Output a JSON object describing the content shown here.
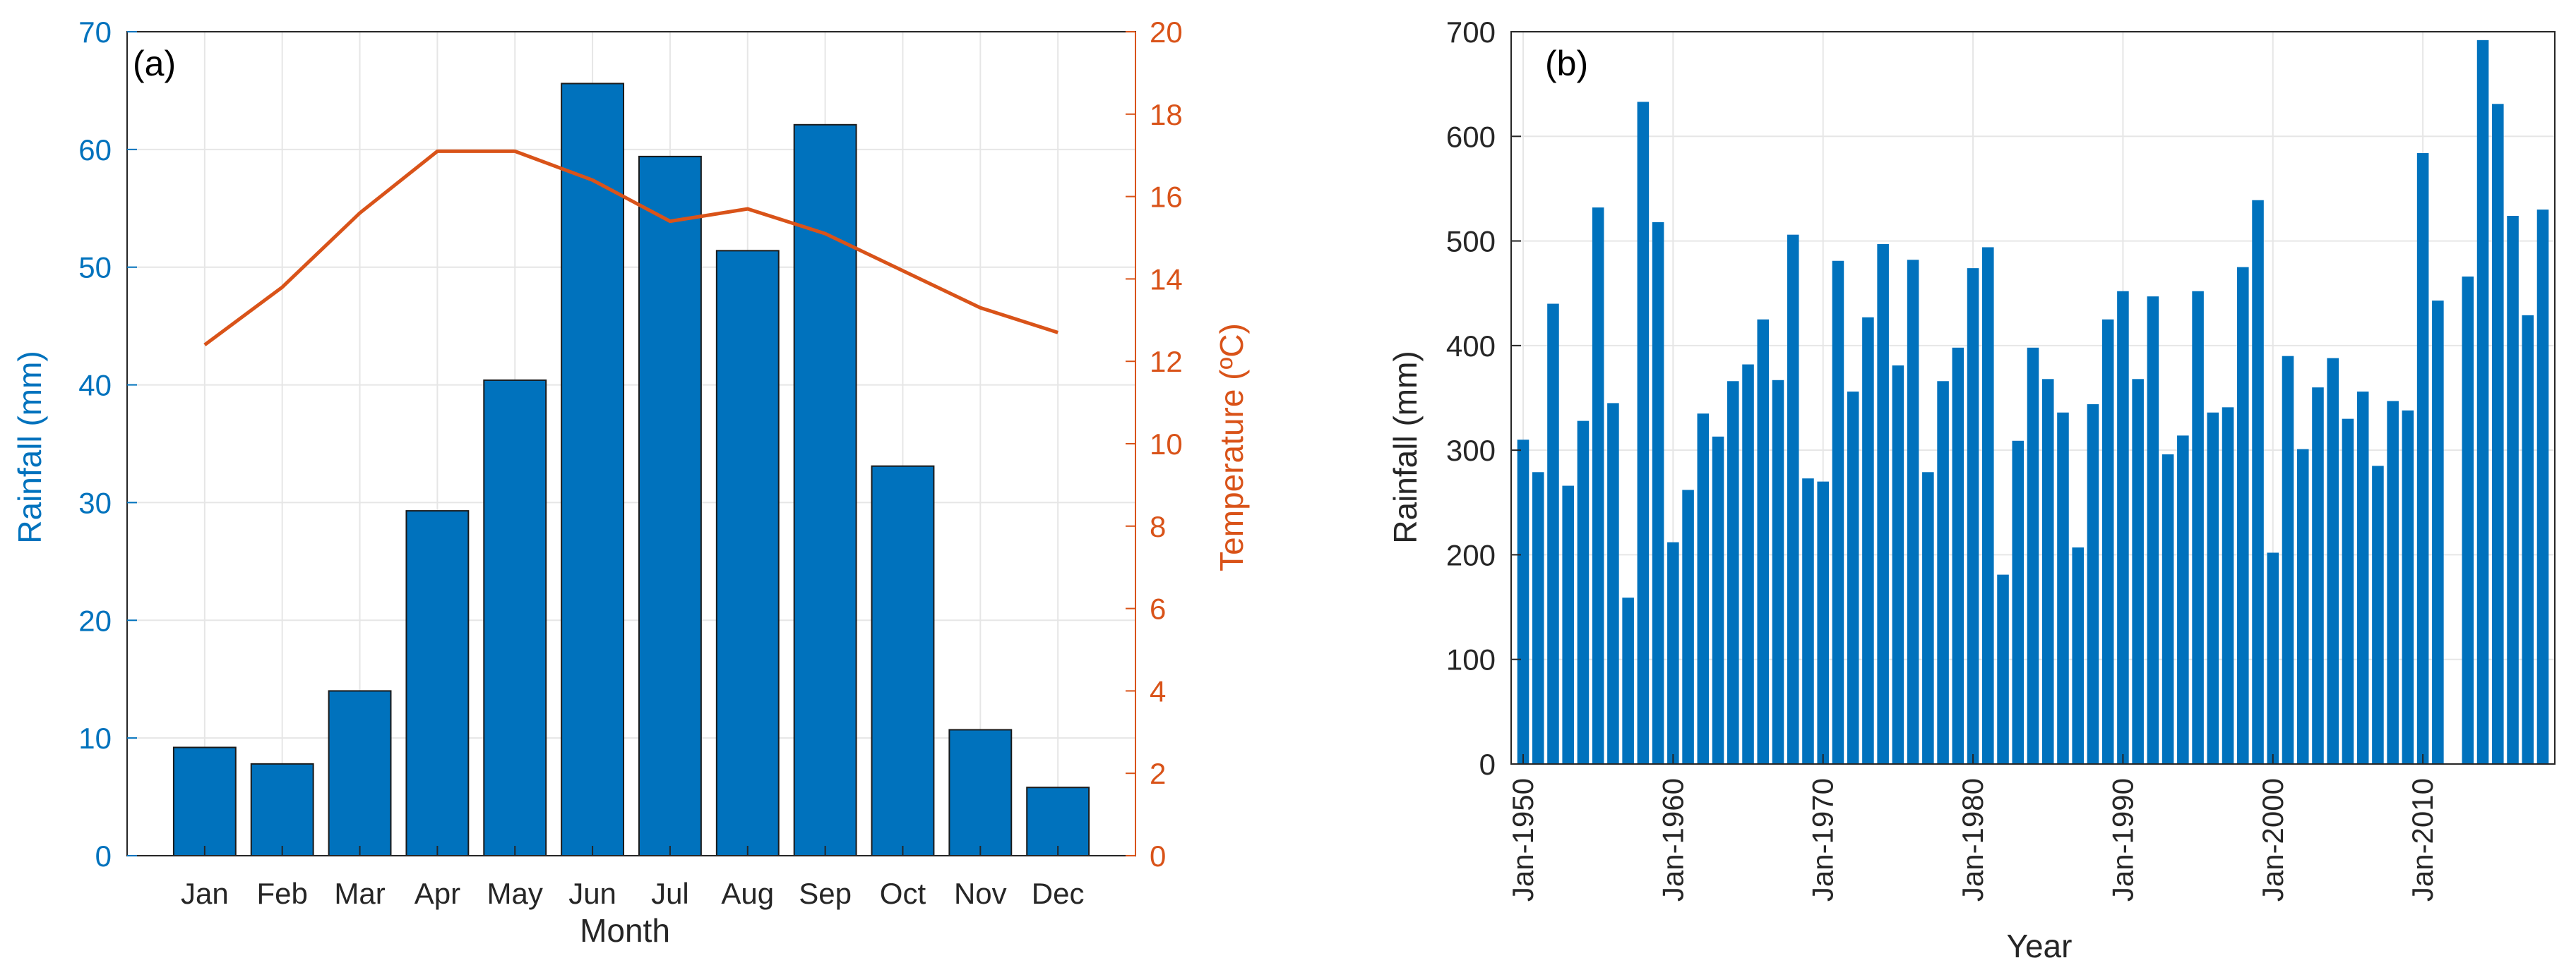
{
  "chart_data": [
    {
      "panel": "(a)",
      "type": "bar",
      "categories": [
        "Jan",
        "Feb",
        "Mar",
        "Apr",
        "May",
        "Jun",
        "Jul",
        "Aug",
        "Sep",
        "Oct",
        "Nov",
        "Dec"
      ],
      "series": [
        {
          "name": "Rainfall",
          "type": "bar",
          "axis": "left",
          "color": "#0072BD",
          "values": [
            9.2,
            7.8,
            14.0,
            29.3,
            40.4,
            65.6,
            59.4,
            51.4,
            62.1,
            33.1,
            10.7,
            5.8
          ]
        },
        {
          "name": "Temperature",
          "type": "line",
          "axis": "right",
          "color": "#D95319",
          "values": [
            12.4,
            13.8,
            15.6,
            17.1,
            17.1,
            16.4,
            15.4,
            15.7,
            15.1,
            14.2,
            13.3,
            12.7
          ]
        }
      ],
      "xlabel": "Month",
      "ylabel_left": "Rainfall (mm)",
      "ylabel_right": "Temperature (ºC)",
      "ylim_left": [
        0,
        70
      ],
      "yticks_left": [
        "0",
        "10",
        "20",
        "30",
        "40",
        "50",
        "60",
        "70"
      ],
      "ylim_right": [
        0,
        20
      ],
      "yticks_right": [
        "0",
        "2",
        "4",
        "6",
        "8",
        "10",
        "12",
        "14",
        "16",
        "18",
        "20"
      ],
      "left_axis_color": "#0072BD",
      "right_axis_color": "#D95319",
      "grid": true
    },
    {
      "panel": "(b)",
      "type": "bar",
      "start_year": 1950,
      "values": [
        310,
        279,
        440,
        266,
        328,
        532,
        345,
        159,
        633,
        518,
        212,
        262,
        335,
        313,
        366,
        382,
        425,
        367,
        506,
        273,
        270,
        481,
        356,
        427,
        497,
        381,
        482,
        279,
        366,
        398,
        474,
        494,
        181,
        309,
        398,
        368,
        336,
        207,
        344,
        425,
        452,
        368,
        447,
        296,
        314,
        452,
        336,
        341,
        475,
        539,
        202,
        390,
        301,
        360,
        388,
        330,
        356,
        285,
        347,
        338,
        584,
        443,
        null,
        466,
        692,
        631,
        524,
        429,
        530
      ],
      "xlabel": "Year",
      "ylabel": "Rainfall (mm)",
      "ylim": [
        0,
        700
      ],
      "yticks": [
        "0",
        "100",
        "200",
        "300",
        "400",
        "500",
        "600",
        "700"
      ],
      "xticks": [
        "Jan-1950",
        "Jan-1960",
        "Jan-1970",
        "Jan-1980",
        "Jan-1990",
        "Jan-2000",
        "Jan-2010"
      ],
      "bar_color": "#0072BD",
      "grid": true
    }
  ]
}
